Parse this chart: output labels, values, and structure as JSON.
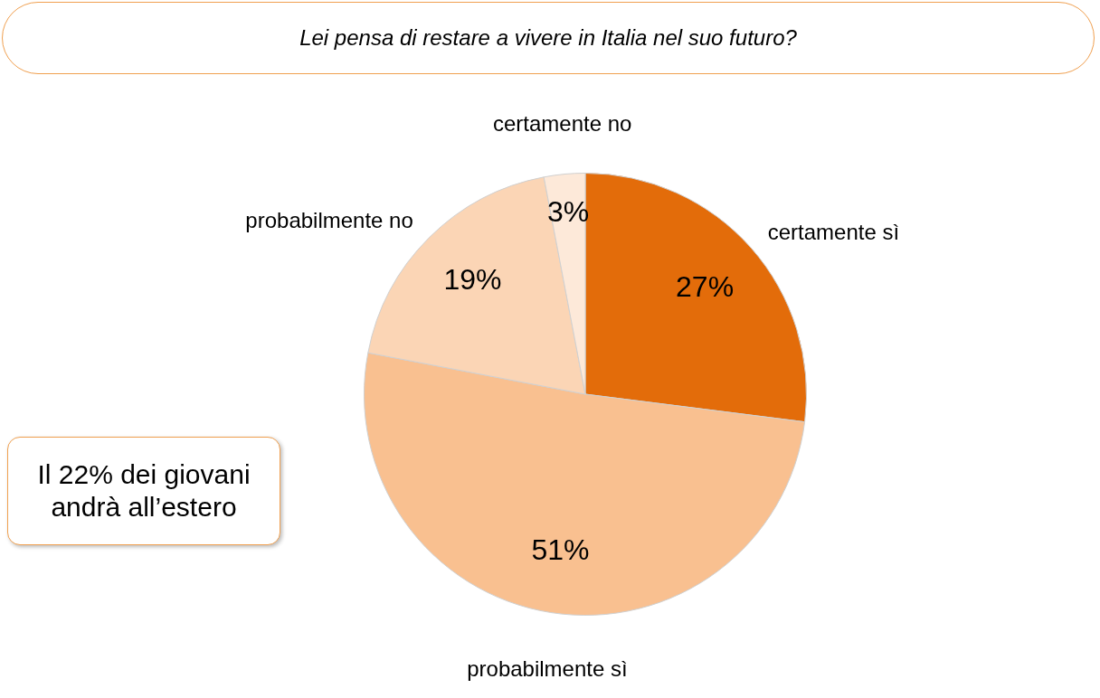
{
  "chart_data": {
    "type": "pie",
    "title": "Lei pensa di restare a vivere in Italia nel suo futuro?",
    "categories": [
      "certamente sì",
      "probabilmente sì",
      "probabilmente no",
      "certamente no"
    ],
    "values": [
      27,
      51,
      19,
      3
    ],
    "colors": [
      "#e36c0a",
      "#f9c090",
      "#fbd5b5",
      "#fde9d9"
    ],
    "value_labels": [
      "27%",
      "51%",
      "19%",
      "3%"
    ],
    "annotations": [
      "Il 22% dei giovani andrà all’estero"
    ],
    "legend": false
  }
}
